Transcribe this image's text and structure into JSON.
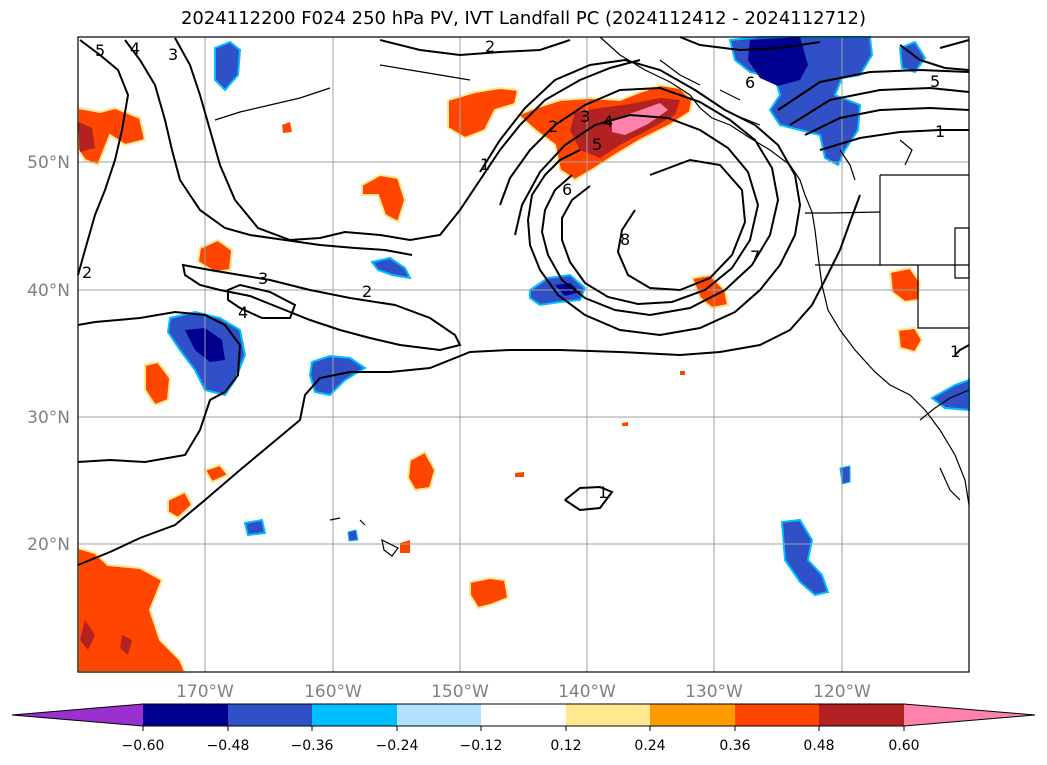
{
  "title": "2024112200 F024 250 hPa PV, IVT Landfall PC (2024112412 - 2024112712)",
  "longitude_labels": [
    "170°W",
    "160°W",
    "150°W",
    "140°W",
    "130°W",
    "120°W"
  ],
  "latitude_labels": [
    "50°N",
    "40°N",
    "30°N",
    "20°N"
  ],
  "colorbar": {
    "tick_labels": [
      "−0.60",
      "−0.48",
      "−0.36",
      "−0.24",
      "−0.12",
      "0.12",
      "0.24",
      "0.36",
      "0.48",
      "0.60"
    ],
    "colors": [
      "#9b30d0",
      "#000090",
      "#3050c8",
      "#00bfff",
      "#b0e2ff",
      "#ffffff",
      "#ffe890",
      "#ff9a00",
      "#ff4500",
      "#b22222",
      "#ff82ab"
    ]
  },
  "pv_contour_labels": [
    "1",
    "2",
    "3",
    "4",
    "5",
    "6",
    "7",
    "8"
  ],
  "contour_label_instances": [
    "5",
    "4",
    "3",
    "2",
    "2",
    "3",
    "4",
    "5",
    "1",
    "6",
    "8",
    "7",
    "1",
    "3",
    "2",
    "4",
    "2",
    "1",
    "6",
    "5",
    "1"
  ]
}
